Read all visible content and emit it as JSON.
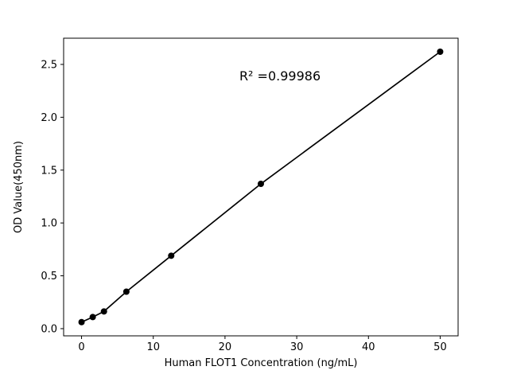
{
  "figure": {
    "background": "#ffffff"
  },
  "chart_data": {
    "type": "scatter",
    "title": "",
    "xlabel": "Human FLOT1 Concentration (ng/mL)",
    "ylabel": "OD Value(450nm)",
    "x": [
      0,
      1.5625,
      3.125,
      6.25,
      12.5,
      25,
      50
    ],
    "y": [
      0.062,
      0.11,
      0.163,
      0.35,
      0.69,
      1.37,
      2.62
    ],
    "line": true,
    "grid": false,
    "legend_position": "none",
    "marker_color": "#000000",
    "line_color": "#000000",
    "xlim": [
      -2.5,
      52.5
    ],
    "ylim": [
      -0.068,
      2.748
    ],
    "xticks": [
      0,
      10,
      20,
      30,
      40,
      50
    ],
    "xtick_labels": [
      "0",
      "10",
      "20",
      "30",
      "40",
      "50"
    ],
    "yticks": [
      0.0,
      0.5,
      1.0,
      1.5,
      2.0,
      2.5
    ],
    "ytick_labels": [
      "0.0",
      "0.5",
      "1.0",
      "1.5",
      "2.0",
      "2.5"
    ],
    "annotation": {
      "text": "R² =0.99986",
      "x": 22,
      "y": 2.35
    }
  }
}
